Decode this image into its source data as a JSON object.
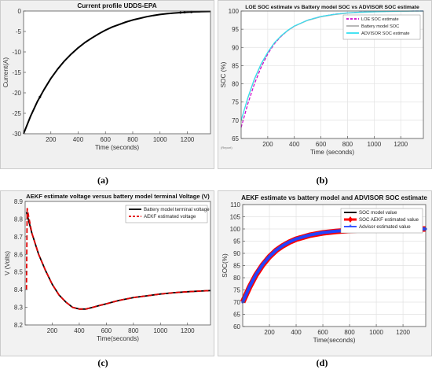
{
  "chart_data": [
    {
      "type": "line",
      "title": "Current profile UDDS-EPA",
      "xlabel": "Time (seconds)",
      "ylabel": "Current(A)",
      "xlim": [
        0,
        1370
      ],
      "ylim": [
        -30,
        0
      ],
      "xticks": [
        200,
        400,
        600,
        800,
        1000,
        1200
      ],
      "yticks": [
        0,
        -5,
        -10,
        -15,
        -20,
        -25,
        -30
      ],
      "grid": false,
      "series": [
        {
          "x": [
            0,
            50,
            100,
            150,
            200,
            250,
            300,
            350,
            400,
            450,
            500,
            550,
            600,
            650,
            700,
            750,
            800,
            850,
            900,
            950,
            1000,
            1050,
            1100,
            1150,
            1200,
            1250,
            1300,
            1370
          ],
          "y": [
            -30,
            -25.8,
            -22.2,
            -19.2,
            -16.5,
            -14.2,
            -12.2,
            -10.5,
            -9.0,
            -7.7,
            -6.6,
            -5.6,
            -4.7,
            -3.9,
            -3.3,
            -2.7,
            -2.2,
            -1.8,
            -1.4,
            -1.1,
            -0.85,
            -0.65,
            -0.5,
            -0.38,
            -0.28,
            -0.2,
            -0.15,
            -0.1
          ],
          "color": "#000000"
        }
      ],
      "caption": "(a)"
    },
    {
      "type": "line",
      "title": "LOE  SOC  estimate vs  Battery model SOC   vs  ADVISOR SOC estimate",
      "xlabel": "Time (seconds)",
      "ylabel": "SOC (%)",
      "xlim": [
        0,
        1370
      ],
      "ylim": [
        65,
        100
      ],
      "xticks": [
        200,
        400,
        600,
        800,
        1000,
        1200
      ],
      "yticks": [
        65,
        70,
        75,
        80,
        85,
        90,
        95,
        100
      ],
      "grid": true,
      "legend": "upper-right",
      "footnote": "(Report)",
      "series": [
        {
          "name": "LOE  SOC  estimate",
          "x": [
            0,
            50,
            100,
            150,
            200,
            250,
            300,
            350,
            400,
            500,
            600,
            700,
            800,
            900,
            1000,
            1100,
            1200,
            1300,
            1370
          ],
          "y": [
            68,
            74.5,
            80.0,
            84.5,
            88.2,
            91.0,
            93.0,
            94.6,
            95.8,
            97.5,
            98.5,
            99.1,
            99.5,
            99.7,
            99.85,
            99.9,
            99.95,
            100,
            100
          ],
          "color": "#cc00cc",
          "dash": true
        },
        {
          "name": "Battery model SOC",
          "x": [
            0,
            50,
            100,
            150,
            200,
            250,
            300,
            350,
            400,
            500,
            600,
            700,
            800,
            900,
            1000,
            1100,
            1200,
            1300,
            1370
          ],
          "y": [
            70,
            76.0,
            81.2,
            85.3,
            88.6,
            91.2,
            93.1,
            94.6,
            95.8,
            97.4,
            98.4,
            99.0,
            99.4,
            99.6,
            99.75,
            99.85,
            99.9,
            99.95,
            100
          ],
          "color": "#b0b0b0",
          "dash": false
        },
        {
          "name": "ADVISOR  SOC  estimate",
          "x": [
            0,
            50,
            100,
            150,
            200,
            250,
            300,
            350,
            400,
            500,
            600,
            700,
            800,
            900,
            1000,
            1100,
            1200,
            1300,
            1370
          ],
          "y": [
            70,
            76.2,
            81.4,
            85.5,
            88.7,
            91.3,
            93.2,
            94.7,
            95.9,
            97.5,
            98.5,
            99.1,
            99.5,
            99.7,
            99.8,
            99.9,
            99.95,
            100,
            100
          ],
          "color": "#33e0f0",
          "dash": false
        }
      ],
      "caption": "(b)"
    },
    {
      "type": "line",
      "title": "AEKF estimate voltage versus battery model terminal Voltage (V)",
      "xlabel": "Time(seconds)",
      "ylabel": "V (Volts)",
      "xlim": [
        0,
        1370
      ],
      "ylim": [
        8.2,
        8.9
      ],
      "xticks": [
        200,
        400,
        600,
        800,
        1000,
        1200
      ],
      "yticks": [
        8.2,
        8.3,
        8.4,
        8.5,
        8.6,
        8.7,
        8.8,
        8.9
      ],
      "grid": false,
      "legend": "upper-right",
      "series": [
        {
          "name": "Battery model terminal voltage",
          "x": [
            10,
            50,
            100,
            150,
            200,
            250,
            300,
            350,
            400,
            450,
            500,
            550,
            600,
            650,
            700,
            800,
            900,
            1000,
            1100,
            1200,
            1300,
            1370
          ],
          "y": [
            8.84,
            8.72,
            8.6,
            8.51,
            8.43,
            8.37,
            8.33,
            8.3,
            8.29,
            8.29,
            8.3,
            8.31,
            8.32,
            8.33,
            8.34,
            8.355,
            8.365,
            8.375,
            8.383,
            8.388,
            8.392,
            8.395
          ],
          "color": "#000000"
        },
        {
          "name": "AEKF estimated voltage",
          "x": [
            10,
            15,
            20,
            50,
            100,
            150,
            200,
            250,
            300,
            350,
            400,
            450,
            500,
            550,
            600,
            650,
            700,
            800,
            900,
            1000,
            1100,
            1200,
            1300,
            1370
          ],
          "y": [
            8.4,
            8.86,
            8.84,
            8.72,
            8.6,
            8.51,
            8.43,
            8.37,
            8.33,
            8.3,
            8.29,
            8.29,
            8.3,
            8.31,
            8.32,
            8.33,
            8.34,
            8.355,
            8.365,
            8.375,
            8.383,
            8.388,
            8.392,
            8.395
          ],
          "color": "#e00000",
          "dash": true
        }
      ],
      "caption": "(c)"
    },
    {
      "type": "line",
      "title": "AEKF estimate vs battery model and ADVISOR SOC estimate",
      "xlabel": "Time(seconds)",
      "ylabel": "SOC(%)",
      "xlim": [
        0,
        1370
      ],
      "ylim": [
        60,
        110
      ],
      "xticks": [
        200,
        400,
        600,
        800,
        1000,
        1200
      ],
      "yticks": [
        60,
        65,
        70,
        75,
        80,
        85,
        90,
        95,
        100,
        105,
        110
      ],
      "grid": true,
      "legend": "upper-right",
      "series": [
        {
          "name": "SOC model value",
          "x": [
            0,
            50,
            100,
            150,
            200,
            250,
            300,
            350,
            400,
            500,
            600,
            700,
            800,
            900,
            1000,
            1100,
            1200,
            1300,
            1370
          ],
          "y": [
            70,
            76.0,
            81.2,
            85.3,
            88.6,
            91.2,
            93.1,
            94.6,
            95.8,
            97.4,
            98.4,
            99.0,
            99.4,
            99.6,
            99.75,
            99.85,
            99.9,
            99.95,
            100
          ],
          "color": "#000000"
        },
        {
          "name": "SOC AEKF estimated value",
          "x": [
            0,
            50,
            100,
            150,
            200,
            250,
            300,
            350,
            400,
            500,
            600,
            700,
            800,
            900,
            1000,
            1100,
            1200,
            1300,
            1370
          ],
          "y": [
            70,
            76.0,
            81.2,
            85.3,
            88.6,
            91.2,
            93.1,
            94.6,
            95.8,
            97.4,
            98.4,
            99.0,
            99.4,
            99.6,
            99.75,
            99.85,
            99.9,
            99.95,
            100
          ],
          "color": "#ff0000"
        },
        {
          "name": "Advisor estimated value",
          "x": [
            0,
            50,
            100,
            150,
            200,
            250,
            300,
            350,
            400,
            500,
            600,
            700,
            800,
            900,
            1000,
            1100,
            1200,
            1300,
            1370
          ],
          "y": [
            70,
            76.2,
            81.4,
            85.5,
            88.7,
            91.3,
            93.2,
            94.7,
            95.9,
            97.5,
            98.5,
            99.1,
            99.5,
            99.7,
            99.8,
            99.9,
            99.95,
            100,
            100
          ],
          "color": "#2244ff"
        }
      ],
      "caption": "(d)"
    }
  ]
}
